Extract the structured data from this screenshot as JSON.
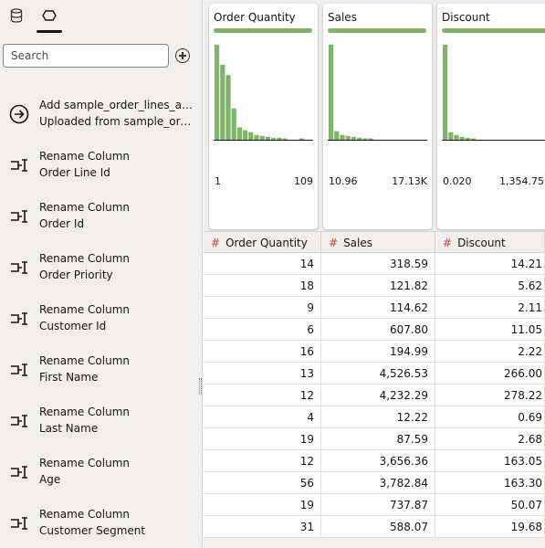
{
  "sidebar": {
    "tabs": [
      {
        "icon": "database-icon",
        "active": false
      },
      {
        "icon": "data-prep-icon",
        "active": true
      }
    ],
    "search_placeholder": "Search",
    "steps": [
      {
        "icon": "arrow-circle-icon",
        "line1": "Add sample_order_lines_ab...",
        "line2": "Uploaded from sample_ord..."
      },
      {
        "icon": "rename-column-icon",
        "line1": "Rename Column",
        "line2": "Order Line Id"
      },
      {
        "icon": "rename-column-icon",
        "line1": "Rename Column",
        "line2": "Order Id"
      },
      {
        "icon": "rename-column-icon",
        "line1": "Rename Column",
        "line2": "Order Priority"
      },
      {
        "icon": "rename-column-icon",
        "line1": "Rename Column",
        "line2": "Customer Id"
      },
      {
        "icon": "rename-column-icon",
        "line1": "Rename Column",
        "line2": "First Name"
      },
      {
        "icon": "rename-column-icon",
        "line1": "Rename Column",
        "line2": "Last Name"
      },
      {
        "icon": "rename-column-icon",
        "line1": "Rename Column",
        "line2": "Age"
      },
      {
        "icon": "rename-column-icon",
        "line1": "Rename Column",
        "line2": "Customer Segment"
      }
    ]
  },
  "profiles": [
    {
      "title": "Order Quantity",
      "min": "1",
      "max": "109",
      "bars": [
        100,
        79,
        68,
        33,
        13,
        10,
        8,
        5,
        4,
        3,
        2,
        2,
        1,
        0,
        0,
        1,
        0
      ]
    },
    {
      "title": "Sales",
      "min": "10.96",
      "max": "17.13K",
      "bars": [
        100,
        9,
        5,
        4,
        3,
        2,
        1,
        1,
        0,
        0,
        0,
        0,
        0,
        0,
        0,
        0,
        0
      ]
    },
    {
      "title": "Discount",
      "min": "0.020",
      "max": "1,354.75",
      "bars": [
        100,
        8,
        5,
        3,
        2,
        1,
        0,
        0,
        0,
        0,
        0,
        0,
        0,
        0,
        0,
        0,
        0
      ]
    }
  ],
  "table": {
    "type_symbol": "#",
    "columns": [
      "Order Quantity",
      "Sales",
      "Discount"
    ],
    "rows": [
      [
        "14",
        "318.59",
        "14.21"
      ],
      [
        "18",
        "121.82",
        "5.62"
      ],
      [
        "9",
        "114.62",
        "2.11"
      ],
      [
        "6",
        "607.80",
        "11.05"
      ],
      [
        "16",
        "194.99",
        "2.22"
      ],
      [
        "13",
        "4,526.53",
        "266.00"
      ],
      [
        "12",
        "4,232.29",
        "278.22"
      ],
      [
        "4",
        "12.22",
        "0.69"
      ],
      [
        "19",
        "87.59",
        "2.68"
      ],
      [
        "12",
        "3,656.36",
        "163.05"
      ],
      [
        "56",
        "3,782.84",
        "163.30"
      ],
      [
        "19",
        "737.87",
        "50.07"
      ],
      [
        "31",
        "588.07",
        "19.68"
      ]
    ]
  },
  "colors": {
    "bar": "#7fb56a",
    "type_symbol": "#c74634"
  }
}
